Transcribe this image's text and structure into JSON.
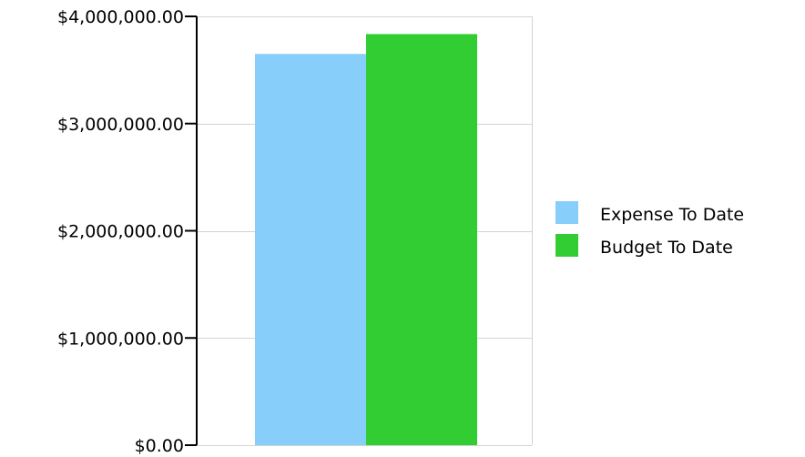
{
  "chart_data": {
    "type": "bar",
    "categories": [
      ""
    ],
    "series": [
      {
        "name": "Expense To Date",
        "values": [
          3650000
        ],
        "color": "#87CEFA"
      },
      {
        "name": "Budget To Date",
        "values": [
          3835000
        ],
        "color": "#32CD32"
      }
    ],
    "ylim": [
      0,
      4000000
    ],
    "yticks": [
      0,
      1000000,
      2000000,
      3000000,
      4000000
    ],
    "ytick_labels": [
      "$0.00",
      "$1,000,000.00",
      "$2,000,000.00",
      "$3,000,000.00",
      "$4,000,000.00"
    ],
    "grid": true,
    "legend_position": "right"
  }
}
